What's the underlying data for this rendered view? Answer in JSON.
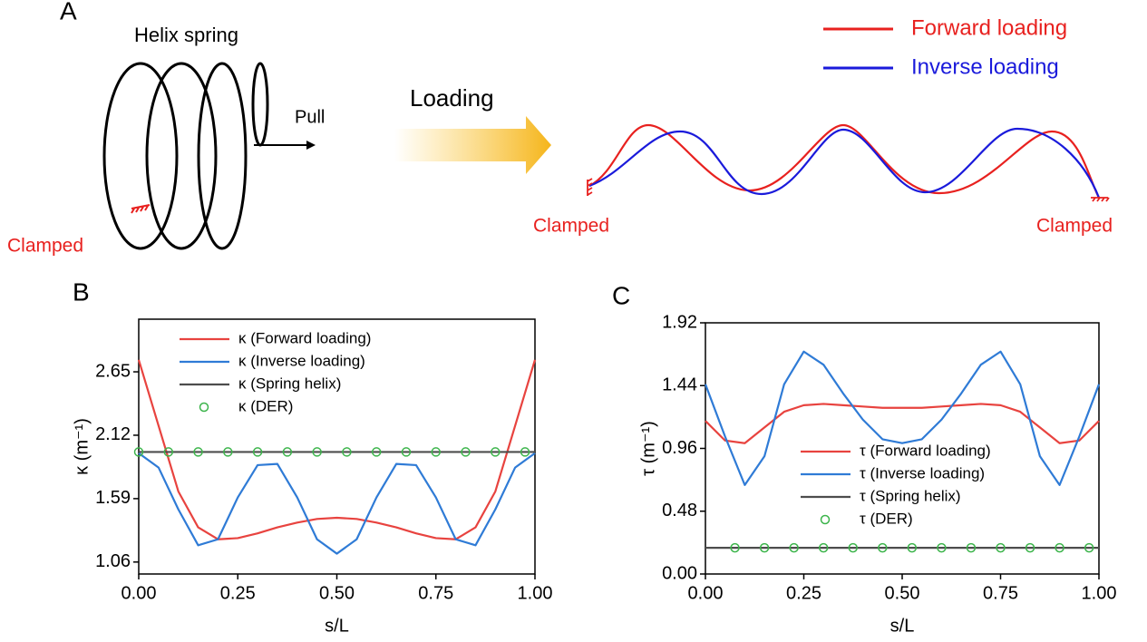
{
  "panel_a": {
    "label": "A",
    "title": "Helix spring",
    "pull": "Pull",
    "loading": "Loading",
    "clamped_left": "Clamped",
    "clamped_mid": "Clamped",
    "clamped_right": "Clamped",
    "legend": [
      "Forward loading",
      "Inverse loading"
    ]
  },
  "chart_data": [
    {
      "type": "line",
      "panel": "B",
      "xlabel": "s/L",
      "ylabel": "κ (m⁻¹)",
      "x": [
        0,
        0.05,
        0.1,
        0.15,
        0.2,
        0.25,
        0.3,
        0.35,
        0.4,
        0.45,
        0.5,
        0.55,
        0.6,
        0.65,
        0.7,
        0.75,
        0.8,
        0.85,
        0.9,
        0.95,
        1
      ],
      "xlim": [
        0,
        1
      ],
      "xticks": [
        {
          "value": 0,
          "label": "0.00"
        },
        0.25,
        {
          "value": 0.5,
          "label": "0.50"
        },
        0.75,
        {
          "value": 1,
          "label": "1.00"
        }
      ],
      "ylim": [
        0.96,
        3.09
      ],
      "yticks": [
        1.06,
        1.59,
        2.12,
        2.65
      ],
      "legend": "upper left",
      "series": [
        {
          "name": "κ (Forward loading)",
          "color": "#e8433f",
          "mode": "line",
          "values": [
            2.75,
            2.2,
            1.65,
            1.35,
            1.25,
            1.26,
            1.3,
            1.35,
            1.39,
            1.42,
            1.43,
            1.42,
            1.39,
            1.35,
            1.3,
            1.26,
            1.25,
            1.35,
            1.65,
            2.2,
            2.75
          ]
        },
        {
          "name": "κ (Inverse loading)",
          "color": "#2f7bd6",
          "mode": "line",
          "values": [
            1.97,
            1.85,
            1.5,
            1.2,
            1.25,
            1.6,
            1.87,
            1.88,
            1.6,
            1.25,
            1.13,
            1.25,
            1.6,
            1.88,
            1.87,
            1.6,
            1.25,
            1.2,
            1.5,
            1.85,
            1.97
          ]
        },
        {
          "name": "κ (Spring helix)",
          "color": "#4d4d4d",
          "mode": "line",
          "values": [
            1.98,
            1.98,
            1.98,
            1.98,
            1.98,
            1.98,
            1.98,
            1.98,
            1.98,
            1.98,
            1.98,
            1.98,
            1.98,
            1.98,
            1.98,
            1.98,
            1.98,
            1.98,
            1.98,
            1.98,
            1.98
          ]
        },
        {
          "name": "κ (DER)",
          "color": "#3cb44b",
          "mode": "markers",
          "x": [
            0,
            0.075,
            0.15,
            0.225,
            0.3,
            0.375,
            0.45,
            0.525,
            0.6,
            0.675,
            0.75,
            0.825,
            0.9,
            0.975
          ],
          "values": [
            1.98,
            1.98,
            1.98,
            1.98,
            1.98,
            1.98,
            1.98,
            1.98,
            1.98,
            1.98,
            1.98,
            1.98,
            1.98,
            1.98
          ]
        }
      ]
    },
    {
      "type": "line",
      "panel": "C",
      "xlabel": "s/L",
      "ylabel": "τ (m⁻¹)",
      "x": [
        0,
        0.05,
        0.1,
        0.15,
        0.2,
        0.25,
        0.3,
        0.35,
        0.4,
        0.45,
        0.5,
        0.55,
        0.6,
        0.65,
        0.7,
        0.75,
        0.8,
        0.85,
        0.9,
        0.95,
        1
      ],
      "xlim": [
        0,
        1
      ],
      "xticks": [
        {
          "value": 0,
          "label": "0.00"
        },
        0.25,
        {
          "value": 0.5,
          "label": "0.50"
        },
        0.75,
        {
          "value": 1,
          "label": "1.00"
        }
      ],
      "ylim": [
        0,
        1.92
      ],
      "yticks": [
        {
          "value": 0,
          "label": "0.00"
        },
        0.48,
        0.96,
        1.44,
        1.92
      ],
      "legend": "center",
      "series": [
        {
          "name": "τ (Forward loading)",
          "color": "#e8433f",
          "mode": "line",
          "values": [
            1.17,
            1.02,
            1.0,
            1.12,
            1.24,
            1.29,
            1.3,
            1.29,
            1.28,
            1.27,
            1.27,
            1.27,
            1.28,
            1.29,
            1.3,
            1.29,
            1.24,
            1.12,
            1.0,
            1.02,
            1.17
          ]
        },
        {
          "name": "τ (Inverse loading)",
          "color": "#2f7bd6",
          "mode": "line",
          "values": [
            1.45,
            1.05,
            0.68,
            0.9,
            1.45,
            1.7,
            1.6,
            1.38,
            1.18,
            1.03,
            1.0,
            1.03,
            1.18,
            1.38,
            1.6,
            1.7,
            1.45,
            0.9,
            0.68,
            1.05,
            1.45
          ]
        },
        {
          "name": "τ (Spring helix)",
          "color": "#4d4d4d",
          "mode": "line",
          "values": [
            0.2,
            0.2,
            0.2,
            0.2,
            0.2,
            0.2,
            0.2,
            0.2,
            0.2,
            0.2,
            0.2,
            0.2,
            0.2,
            0.2,
            0.2,
            0.2,
            0.2,
            0.2,
            0.2,
            0.2,
            0.2
          ]
        },
        {
          "name": "τ (DER)",
          "color": "#3cb44b",
          "mode": "markers",
          "x": [
            0.075,
            0.15,
            0.225,
            0.3,
            0.375,
            0.45,
            0.525,
            0.6,
            0.675,
            0.75,
            0.825,
            0.9,
            0.975
          ],
          "values": [
            0.2,
            0.2,
            0.2,
            0.2,
            0.2,
            0.2,
            0.2,
            0.2,
            0.2,
            0.2,
            0.2,
            0.2,
            0.2
          ]
        }
      ]
    }
  ]
}
